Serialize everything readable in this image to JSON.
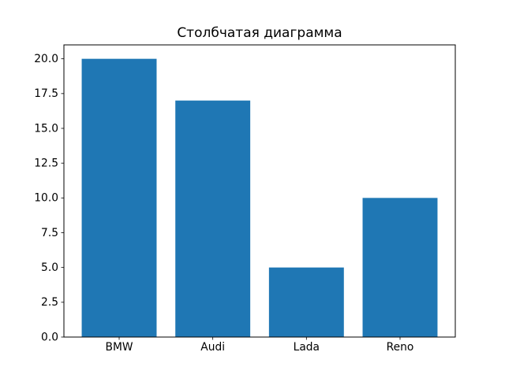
{
  "page": {
    "background": "#ffffff"
  },
  "chart_data": {
    "type": "bar",
    "title": "Столбчатая диаграмма",
    "categories": [
      "BMW",
      "Audi",
      "Lada",
      "Reno"
    ],
    "values": [
      20,
      17,
      5,
      10
    ],
    "bar_color": "#1f77b4",
    "axis_color": "#000000",
    "text_color": "#000000",
    "xlabel": "",
    "ylabel": "",
    "ylim": [
      0,
      21
    ],
    "yticks": [
      0.0,
      2.5,
      5.0,
      7.5,
      10.0,
      12.5,
      15.0,
      17.5,
      20.0
    ],
    "ytick_labels": [
      "0.0",
      "2.5",
      "5.0",
      "7.5",
      "10.0",
      "12.5",
      "15.0",
      "17.5",
      "20.0"
    ],
    "grid": false,
    "legend": "none",
    "bar_rel_width": 0.8
  }
}
